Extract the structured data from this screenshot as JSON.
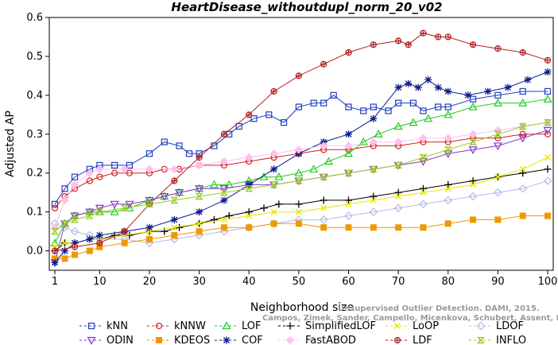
{
  "chart_data": {
    "type": "line",
    "title": "HeartDisease_withoutdupl_norm_20_v02",
    "xlabel": "Neighborhood size",
    "ylabel": "Adjusted AP",
    "xlim": [
      1,
      100
    ],
    "ylim": [
      -0.05,
      0.6
    ],
    "xticks": [
      1,
      10,
      20,
      30,
      40,
      50,
      60,
      70,
      80,
      90,
      100
    ],
    "yticks": [
      0.0,
      0.1,
      0.2,
      0.3,
      0.4,
      0.5,
      0.6
    ],
    "grid": false,
    "legend_position": "bottom",
    "watermark": [
      "Unsupervised Outlier Detection. DAMI, 2015.",
      "Campos, Zimek, Sander, Campello, Micenkova, Schubert, Assent, Houle"
    ],
    "series": [
      {
        "name": "kNN",
        "color": "#1f3fbf",
        "marker": "square",
        "x": [
          1,
          3,
          5,
          8,
          10,
          13,
          16,
          20,
          23,
          26,
          28,
          30,
          33,
          36,
          38,
          41,
          44,
          47,
          50,
          53,
          55,
          57,
          60,
          63,
          65,
          68,
          70,
          73,
          75,
          78,
          80,
          85,
          90,
          95,
          100
        ],
        "y": [
          0.12,
          0.16,
          0.19,
          0.21,
          0.22,
          0.22,
          0.22,
          0.25,
          0.28,
          0.27,
          0.25,
          0.25,
          0.27,
          0.3,
          0.32,
          0.34,
          0.35,
          0.33,
          0.37,
          0.38,
          0.38,
          0.4,
          0.37,
          0.36,
          0.37,
          0.36,
          0.38,
          0.38,
          0.36,
          0.37,
          0.37,
          0.39,
          0.4,
          0.41,
          0.41
        ]
      },
      {
        "name": "kNNW",
        "color": "#d62020",
        "marker": "circle",
        "x": [
          1,
          3,
          5,
          8,
          10,
          13,
          16,
          20,
          23,
          26,
          30,
          35,
          40,
          45,
          50,
          55,
          60,
          65,
          70,
          75,
          80,
          85,
          90,
          95,
          100
        ],
        "y": [
          0.11,
          0.14,
          0.16,
          0.18,
          0.19,
          0.2,
          0.2,
          0.2,
          0.21,
          0.21,
          0.22,
          0.22,
          0.23,
          0.24,
          0.25,
          0.26,
          0.26,
          0.27,
          0.27,
          0.28,
          0.28,
          0.29,
          0.29,
          0.3,
          0.3
        ]
      },
      {
        "name": "LOF",
        "color": "#22cc22",
        "marker": "triangle",
        "x": [
          1,
          3,
          5,
          8,
          10,
          13,
          16,
          20,
          23,
          26,
          30,
          33,
          36,
          40,
          43,
          46,
          50,
          53,
          56,
          60,
          63,
          66,
          70,
          73,
          76,
          80,
          85,
          90,
          95,
          100
        ],
        "y": [
          0.02,
          0.07,
          0.09,
          0.1,
          0.1,
          0.1,
          0.11,
          0.13,
          0.14,
          0.15,
          0.16,
          0.17,
          0.17,
          0.18,
          0.19,
          0.19,
          0.2,
          0.21,
          0.23,
          0.25,
          0.28,
          0.3,
          0.32,
          0.33,
          0.34,
          0.35,
          0.37,
          0.38,
          0.38,
          0.39
        ]
      },
      {
        "name": "SimplifiedLOF",
        "color": "#000000",
        "marker": "plus",
        "x": [
          1,
          3,
          5,
          8,
          10,
          13,
          16,
          20,
          23,
          26,
          30,
          33,
          36,
          40,
          43,
          46,
          50,
          55,
          60,
          65,
          70,
          75,
          80,
          85,
          90,
          95,
          100
        ],
        "y": [
          0.0,
          0.02,
          0.02,
          0.03,
          0.03,
          0.04,
          0.04,
          0.05,
          0.05,
          0.06,
          0.07,
          0.08,
          0.09,
          0.1,
          0.11,
          0.12,
          0.12,
          0.13,
          0.13,
          0.14,
          0.15,
          0.16,
          0.17,
          0.18,
          0.19,
          0.2,
          0.21
        ]
      },
      {
        "name": "LoOP",
        "color": "#e8e800",
        "marker": "cross",
        "x": [
          1,
          3,
          5,
          8,
          10,
          15,
          20,
          25,
          30,
          35,
          40,
          45,
          50,
          55,
          60,
          65,
          70,
          75,
          80,
          85,
          90,
          95,
          100
        ],
        "y": [
          0.01,
          0.02,
          0.02,
          0.03,
          0.03,
          0.04,
          0.05,
          0.06,
          0.07,
          0.08,
          0.09,
          0.1,
          0.1,
          0.11,
          0.12,
          0.13,
          0.14,
          0.15,
          0.16,
          0.17,
          0.19,
          0.21,
          0.24
        ]
      },
      {
        "name": "LDOF",
        "color": "#b8b8e8",
        "marker": "diamond",
        "x": [
          1,
          3,
          5,
          8,
          10,
          15,
          20,
          25,
          30,
          35,
          40,
          45,
          50,
          55,
          60,
          65,
          70,
          75,
          80,
          85,
          90,
          95,
          100
        ],
        "y": [
          0.07,
          0.06,
          0.05,
          0.04,
          0.03,
          0.03,
          0.02,
          0.03,
          0.04,
          0.05,
          0.06,
          0.07,
          0.08,
          0.08,
          0.09,
          0.1,
          0.11,
          0.12,
          0.13,
          0.14,
          0.15,
          0.16,
          0.18
        ]
      },
      {
        "name": "ODIN",
        "color": "#8833cc",
        "marker": "inv-triangle",
        "x": [
          1,
          3,
          5,
          8,
          10,
          13,
          16,
          20,
          23,
          26,
          30,
          35,
          40,
          45,
          50,
          55,
          60,
          65,
          70,
          75,
          80,
          85,
          90,
          95,
          100
        ],
        "y": [
          -0.03,
          0.07,
          0.09,
          0.1,
          0.11,
          0.12,
          0.12,
          0.13,
          0.14,
          0.15,
          0.16,
          0.16,
          0.17,
          0.17,
          0.18,
          0.19,
          0.2,
          0.21,
          0.22,
          0.23,
          0.25,
          0.26,
          0.27,
          0.29,
          0.31
        ]
      },
      {
        "name": "KDEOS",
        "color": "#ee9900",
        "marker": "square-filled",
        "x": [
          1,
          3,
          5,
          8,
          10,
          15,
          20,
          25,
          30,
          35,
          40,
          45,
          50,
          55,
          60,
          65,
          70,
          75,
          80,
          85,
          90,
          95,
          100
        ],
        "y": [
          -0.02,
          -0.02,
          -0.01,
          0.0,
          0.01,
          0.02,
          0.03,
          0.04,
          0.05,
          0.06,
          0.06,
          0.07,
          0.07,
          0.06,
          0.06,
          0.06,
          0.06,
          0.06,
          0.07,
          0.08,
          0.08,
          0.09,
          0.09
        ]
      },
      {
        "name": "COF",
        "color": "#0a1a8a",
        "marker": "asterisk",
        "x": [
          1,
          3,
          5,
          8,
          10,
          15,
          20,
          25,
          30,
          35,
          40,
          45,
          50,
          55,
          60,
          65,
          70,
          72,
          74,
          76,
          78,
          80,
          84,
          88,
          92,
          96,
          100
        ],
        "y": [
          -0.03,
          0.0,
          0.02,
          0.03,
          0.04,
          0.05,
          0.06,
          0.08,
          0.1,
          0.13,
          0.17,
          0.21,
          0.25,
          0.28,
          0.3,
          0.34,
          0.42,
          0.43,
          0.42,
          0.44,
          0.42,
          0.41,
          0.4,
          0.41,
          0.42,
          0.44,
          0.46
        ]
      },
      {
        "name": "FastABOD",
        "color": "#ffc0ee",
        "marker": "diamond-filled",
        "x": [
          1,
          3,
          5,
          8,
          10,
          15,
          20,
          25,
          30,
          35,
          40,
          45,
          50,
          55,
          60,
          65,
          70,
          75,
          80,
          85,
          90,
          95,
          100
        ],
        "y": [
          0.06,
          0.13,
          0.17,
          0.2,
          0.21,
          0.21,
          0.21,
          0.21,
          0.22,
          0.23,
          0.24,
          0.25,
          0.26,
          0.27,
          0.27,
          0.28,
          0.28,
          0.29,
          0.29,
          0.3,
          0.31,
          0.32,
          0.33
        ]
      },
      {
        "name": "LDF",
        "color": "#b02020",
        "marker": "circle-plus",
        "x": [
          1,
          5,
          10,
          15,
          20,
          25,
          30,
          35,
          40,
          45,
          50,
          55,
          60,
          65,
          70,
          72,
          75,
          78,
          80,
          85,
          90,
          95,
          100
        ],
        "y": [
          0.0,
          0.01,
          0.02,
          0.05,
          0.12,
          0.18,
          0.24,
          0.3,
          0.35,
          0.41,
          0.45,
          0.48,
          0.51,
          0.53,
          0.54,
          0.53,
          0.56,
          0.55,
          0.55,
          0.53,
          0.52,
          0.51,
          0.49
        ]
      },
      {
        "name": "INFLO",
        "color": "#99cc22",
        "marker": "hourglass",
        "x": [
          1,
          3,
          5,
          8,
          10,
          15,
          20,
          25,
          30,
          35,
          40,
          45,
          50,
          55,
          60,
          65,
          70,
          75,
          80,
          85,
          90,
          95,
          100
        ],
        "y": [
          0.05,
          0.07,
          0.08,
          0.09,
          0.1,
          0.11,
          0.12,
          0.13,
          0.14,
          0.15,
          0.16,
          0.17,
          0.18,
          0.19,
          0.2,
          0.21,
          0.22,
          0.24,
          0.26,
          0.28,
          0.3,
          0.32,
          0.33
        ]
      }
    ]
  }
}
